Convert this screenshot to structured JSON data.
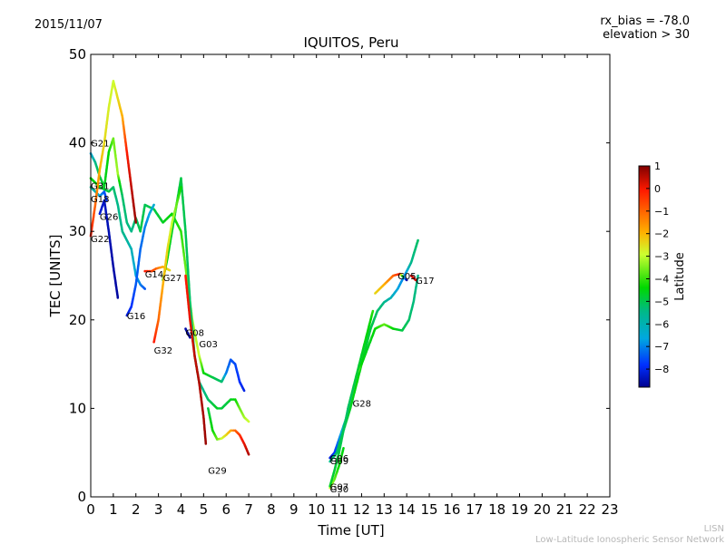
{
  "chart_data": {
    "type": "scatter",
    "date": "2015/11/07",
    "title": "IQUITOS, Peru",
    "info_line1": "rx_bias = -78.0",
    "info_line2": "elevation > 30",
    "xlabel": "Time [UT]",
    "ylabel": "TEC [UNITS]",
    "xlim": [
      0,
      23
    ],
    "ylim": [
      0,
      50
    ],
    "x_ticks": [
      "0",
      "1",
      "2",
      "3",
      "4",
      "5",
      "6",
      "7",
      "8",
      "9",
      "10",
      "11",
      "12",
      "13",
      "14",
      "15",
      "16",
      "17",
      "18",
      "19",
      "20",
      "21",
      "22",
      "23"
    ],
    "y_ticks": [
      "0",
      "10",
      "20",
      "30",
      "40",
      "50"
    ],
    "grid": false,
    "colorbar": {
      "label": "Latitude",
      "range": [
        -8.8,
        1
      ],
      "ticks": [
        "1",
        "0",
        "−1",
        "−2",
        "−3",
        "−4",
        "−5",
        "−6",
        "−7",
        "−8"
      ],
      "tick_values": [
        1,
        0,
        -1,
        -2,
        -3,
        -4,
        -5,
        -6,
        -7,
        -8
      ]
    },
    "series": [
      {
        "name": "G21",
        "label_at": [
          0.0,
          40.0
        ],
        "points": [
          [
            0.0,
            38.8,
            -6.0
          ],
          [
            0.2,
            37.8,
            -5.0
          ],
          [
            0.4,
            36.2,
            -4.0
          ],
          [
            0.6,
            35.0,
            -3.5
          ],
          [
            0.8,
            39.0,
            -3.0
          ],
          [
            1.0,
            40.5,
            -2.5
          ],
          [
            1.2,
            36.5,
            -2.2
          ],
          [
            1.4,
            34.0,
            -4.5
          ],
          [
            1.6,
            31.0,
            -4.8
          ],
          [
            1.8,
            30.0,
            -5.0
          ],
          [
            2.0,
            31.5,
            -4.5
          ],
          [
            2.2,
            30.0,
            -4.0
          ],
          [
            2.4,
            33.0,
            -4.2
          ],
          [
            2.8,
            32.5,
            -4.0
          ],
          [
            3.2,
            31.0,
            -3.5
          ],
          [
            3.6,
            32.0,
            -3.0
          ],
          [
            4.0,
            30.0,
            -2.8
          ],
          [
            4.2,
            26.0,
            -2.5
          ],
          [
            4.5,
            20.0,
            -2.2
          ],
          [
            4.8,
            16.0,
            -2.0
          ],
          [
            5.0,
            14.0,
            -3.0
          ],
          [
            5.4,
            13.5,
            -4.0
          ],
          [
            5.8,
            13.0,
            -4.5
          ],
          [
            6.0,
            14.0,
            -6.5
          ],
          [
            6.2,
            15.5,
            -7.0
          ],
          [
            6.4,
            15.0,
            -7.2
          ],
          [
            6.6,
            13.0,
            -7.5
          ],
          [
            6.8,
            12.0,
            -7.8
          ]
        ]
      },
      {
        "name": "G31",
        "label_at": [
          0.0,
          35.2
        ],
        "points": [
          [
            0.0,
            36.0,
            -3.0
          ],
          [
            0.4,
            35.0,
            -3.5
          ],
          [
            0.8,
            34.5,
            -4.0
          ],
          [
            1.0,
            35.0,
            -4.5
          ],
          [
            1.2,
            33.0,
            -5.0
          ],
          [
            1.4,
            30.0,
            -5.0
          ],
          [
            1.6,
            29.0,
            -5.2
          ],
          [
            1.8,
            28.0,
            -5.5
          ],
          [
            2.0,
            25.0,
            -6.0
          ],
          [
            2.2,
            24.0,
            -6.5
          ],
          [
            2.4,
            23.5,
            -7.0
          ]
        ]
      },
      {
        "name": "G18",
        "label_at": [
          0.0,
          33.7
        ],
        "points": [
          [
            0.0,
            35.0,
            -5.0
          ],
          [
            0.2,
            34.5,
            -5.5
          ],
          [
            0.4,
            34.0,
            -6.0
          ],
          [
            0.6,
            34.5,
            -7.0
          ],
          [
            0.7,
            33.5,
            -7.5
          ]
        ]
      },
      {
        "name": "G26",
        "label_at": [
          0.4,
          31.7
        ],
        "points": [
          [
            0.4,
            32.0,
            -8.0
          ],
          [
            0.6,
            33.5,
            -8.2
          ],
          [
            0.8,
            30.0,
            -8.4
          ],
          [
            1.0,
            26.0,
            -8.5
          ],
          [
            1.2,
            22.5,
            -8.6
          ]
        ]
      },
      {
        "name": "G22",
        "label_at": [
          0.0,
          29.2
        ],
        "points": [
          [
            0.0,
            29.5,
            0.0
          ],
          [
            0.2,
            33.0,
            -0.5
          ],
          [
            0.4,
            37.0,
            -1.0
          ],
          [
            0.6,
            40.0,
            -1.5
          ],
          [
            0.8,
            44.0,
            -1.8
          ],
          [
            1.0,
            47.0,
            -2.0
          ],
          [
            1.2,
            45.0,
            -1.5
          ],
          [
            1.4,
            43.0,
            -1.0
          ],
          [
            1.6,
            39.0,
            0.0
          ],
          [
            1.8,
            35.0,
            0.5
          ],
          [
            2.0,
            31.0,
            0.8
          ]
        ]
      },
      {
        "name": "G14",
        "label_at": [
          2.4,
          25.2
        ],
        "points": [
          [
            2.4,
            25.5,
            0.0
          ],
          [
            2.7,
            25.5,
            -0.2
          ],
          [
            2.9,
            25.8,
            -0.5
          ],
          [
            3.2,
            26.0,
            -1.0
          ],
          [
            3.5,
            25.6,
            -1.5
          ]
        ]
      },
      {
        "name": "G27",
        "label_at": [
          3.2,
          24.8
        ],
        "points": [
          [
            3.2,
            24.5,
            -3.0
          ],
          [
            3.4,
            27.0,
            -3.2
          ],
          [
            3.6,
            30.0,
            -3.5
          ],
          [
            3.8,
            33.0,
            -3.8
          ],
          [
            4.0,
            36.0,
            -4.0
          ],
          [
            4.2,
            30.0,
            -4.2
          ],
          [
            4.4,
            22.0,
            -4.5
          ],
          [
            4.6,
            16.0,
            -4.7
          ],
          [
            4.8,
            13.0,
            -4.8
          ],
          [
            5.0,
            12.0,
            -5.0
          ],
          [
            5.2,
            11.0,
            -4.5
          ],
          [
            5.4,
            10.5,
            -4.0
          ],
          [
            5.6,
            10.0,
            -3.5
          ],
          [
            5.8,
            10.0,
            -3.8
          ],
          [
            6.0,
            10.5,
            -4.0
          ],
          [
            6.2,
            11.0,
            -3.5
          ],
          [
            6.4,
            11.0,
            -3.0
          ],
          [
            6.6,
            10.0,
            -2.5
          ],
          [
            6.8,
            9.0,
            -2.2
          ],
          [
            7.0,
            8.5,
            -2.0
          ]
        ]
      },
      {
        "name": "G16",
        "label_at": [
          1.6,
          20.5
        ],
        "points": [
          [
            1.6,
            20.5,
            -8.0
          ],
          [
            1.8,
            21.5,
            -7.5
          ],
          [
            2.0,
            24.0,
            -7.0
          ],
          [
            2.2,
            28.0,
            -6.8
          ],
          [
            2.4,
            30.5,
            -6.5
          ],
          [
            2.6,
            32.0,
            -6.0
          ],
          [
            2.8,
            33.0,
            -5.8
          ]
        ]
      },
      {
        "name": "G08",
        "label_at": [
          4.2,
          18.6
        ],
        "points": [
          [
            4.2,
            19.0,
            -8.5
          ],
          [
            4.3,
            18.5,
            -8.6
          ],
          [
            4.4,
            18.0,
            -8.7
          ]
        ]
      },
      {
        "name": "G32",
        "label_at": [
          2.8,
          16.6
        ],
        "points": [
          [
            2.8,
            17.5,
            0.0
          ],
          [
            3.0,
            20.0,
            -0.5
          ],
          [
            3.2,
            24.0,
            -1.0
          ],
          [
            3.4,
            28.0,
            -1.5
          ],
          [
            3.6,
            31.0,
            -2.0
          ],
          [
            3.8,
            33.0,
            -2.5
          ],
          [
            4.0,
            35.0,
            -3.0
          ]
        ]
      },
      {
        "name": "G03",
        "label_at": [
          4.8,
          17.3
        ],
        "points": [
          [
            4.2,
            25.0,
            0.0
          ],
          [
            4.4,
            20.0,
            0.2
          ],
          [
            4.6,
            16.0,
            0.5
          ],
          [
            4.8,
            13.0,
            0.6
          ],
          [
            5.0,
            9.0,
            0.7
          ],
          [
            5.1,
            6.0,
            0.8
          ]
        ]
      },
      {
        "name": "G29",
        "label_at": [
          5.2,
          3.0
        ],
        "points": [
          [
            5.2,
            10.0,
            -4.0
          ],
          [
            5.4,
            7.5,
            -3.0
          ],
          [
            5.6,
            6.5,
            -2.5
          ],
          [
            5.8,
            6.6,
            -2.0
          ],
          [
            6.0,
            7.0,
            -1.5
          ],
          [
            6.2,
            7.5,
            -1.0
          ],
          [
            6.4,
            7.5,
            -0.5
          ],
          [
            6.6,
            7.0,
            -0.2
          ],
          [
            6.8,
            6.0,
            0.2
          ],
          [
            7.0,
            4.8,
            0.6
          ]
        ]
      },
      {
        "name": "G06",
        "label_at": [
          10.6,
          4.4
        ],
        "points": [
          [
            10.6,
            4.4,
            -8.0
          ],
          [
            10.8,
            5.0,
            -7.5
          ],
          [
            11.0,
            6.5,
            -6.5
          ],
          [
            11.2,
            8.0,
            -5.5
          ],
          [
            11.4,
            9.5,
            -5.0
          ],
          [
            11.6,
            11.0,
            -4.5
          ]
        ]
      },
      {
        "name": "G09",
        "label_at": [
          10.6,
          4.1
        ],
        "points": [
          [
            10.6,
            4.0,
            -5.0
          ],
          [
            10.9,
            5.0,
            -4.5
          ],
          [
            11.2,
            7.5,
            -4.0
          ],
          [
            11.5,
            10.0,
            -3.5
          ],
          [
            11.8,
            13.0,
            -3.0
          ],
          [
            12.1,
            16.0,
            -3.5
          ],
          [
            12.4,
            19.0,
            -4.0
          ],
          [
            12.7,
            21.0,
            -4.5
          ],
          [
            13.0,
            22.0,
            -5.0
          ],
          [
            13.3,
            22.5,
            -5.5
          ],
          [
            13.6,
            23.5,
            -6.0
          ],
          [
            13.9,
            25.0,
            -6.5
          ],
          [
            14.2,
            26.5,
            -5.0
          ],
          [
            14.5,
            29.0,
            -4.5
          ]
        ]
      },
      {
        "name": "G28",
        "label_at": [
          11.6,
          10.6
        ],
        "points": [
          [
            11.4,
            10.0,
            -2.5
          ],
          [
            11.6,
            12.0,
            -2.0
          ],
          [
            11.8,
            14.0,
            -2.2
          ],
          [
            12.0,
            15.0,
            -3.0
          ],
          [
            12.3,
            17.0,
            -3.5
          ],
          [
            12.6,
            19.0,
            -3.0
          ],
          [
            13.0,
            19.5,
            -2.5
          ],
          [
            13.4,
            19.0,
            -3.0
          ],
          [
            13.8,
            18.8,
            -4.0
          ],
          [
            14.1,
            20.0,
            -4.5
          ],
          [
            14.3,
            22.0,
            -4.8
          ],
          [
            14.5,
            25.0,
            -5.0
          ]
        ]
      },
      {
        "name": "G05",
        "label_at": [
          13.6,
          25.0
        ],
        "points": [
          [
            12.6,
            23.0,
            -1.5
          ],
          [
            13.0,
            24.0,
            -1.0
          ],
          [
            13.4,
            25.0,
            -0.5
          ],
          [
            13.7,
            25.2,
            0.0
          ],
          [
            14.0,
            24.5,
            -8.5
          ]
        ]
      },
      {
        "name": "G17",
        "label_at": [
          14.4,
          24.5
        ],
        "points": [
          [
            14.2,
            25.0,
            0.5
          ],
          [
            14.4,
            24.5,
            0.3
          ]
        ]
      },
      {
        "name": "G30",
        "label_at": [
          10.6,
          0.9
        ],
        "points": [
          [
            10.6,
            1.0,
            -2.0
          ],
          [
            10.8,
            2.0,
            -2.5
          ],
          [
            11.0,
            3.5,
            -3.0
          ],
          [
            11.2,
            5.5,
            -3.2
          ]
        ]
      },
      {
        "name": "G07",
        "label_at": [
          10.6,
          1.2
        ],
        "points": [
          [
            10.6,
            1.2,
            -3.5
          ],
          [
            10.8,
            3.0,
            -3.8
          ],
          [
            11.0,
            5.0,
            -4.0
          ],
          [
            11.2,
            7.5,
            -4.2
          ],
          [
            11.4,
            10.0,
            -4.5
          ],
          [
            11.6,
            12.0,
            -4.2
          ],
          [
            11.8,
            14.0,
            -3.8
          ],
          [
            12.0,
            16.0,
            -3.5
          ],
          [
            12.2,
            18.0,
            -3.2
          ],
          [
            12.4,
            20.0,
            -3.0
          ],
          [
            12.5,
            21.0,
            -2.8
          ]
        ]
      }
    ]
  },
  "footer": {
    "line1": "LISN",
    "line2": "Low-Latitude Ionospheric Sensor Network"
  }
}
